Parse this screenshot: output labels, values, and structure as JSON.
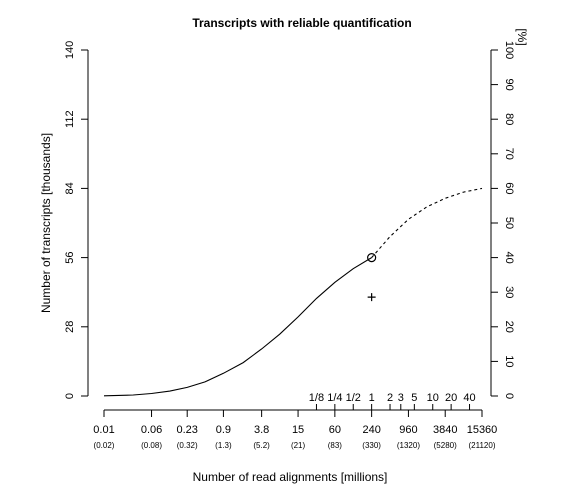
{
  "chart_data": {
    "type": "line",
    "title": "Transcripts with reliable quantification",
    "xlabel": "Number of read alignments [millions]",
    "ylabel": "Number of transcripts [thousands]",
    "y2label": "[%]",
    "scale": "log",
    "x_ticks": [
      {
        "label": "0.01",
        "sub": "(0.02)",
        "x": 0.01
      },
      {
        "label": "0.06",
        "sub": "(0.08)",
        "x": 0.06
      },
      {
        "label": "0.23",
        "sub": "(0.32)",
        "x": 0.23
      },
      {
        "label": "0.9",
        "sub": "(1.3)",
        "x": 0.9
      },
      {
        "label": "3.8",
        "sub": "(5.2)",
        "x": 3.8
      },
      {
        "label": "15",
        "sub": "(21)",
        "x": 15
      },
      {
        "label": "60",
        "sub": "(83)",
        "x": 60
      },
      {
        "label": "240",
        "sub": "(330)",
        "x": 240
      },
      {
        "label": "960",
        "sub": "(1320)",
        "x": 960
      },
      {
        "label": "3840",
        "sub": "(5280)",
        "x": 3840
      },
      {
        "label": "15360",
        "sub": "(21120)",
        "x": 15360
      }
    ],
    "fraction_ticks": [
      {
        "label": "1/8",
        "x": 30
      },
      {
        "label": "1/4",
        "x": 60
      },
      {
        "label": "1/2",
        "x": 120
      },
      {
        "label": "1",
        "x": 240
      },
      {
        "label": "2",
        "x": 480
      },
      {
        "label": "3",
        "x": 720
      },
      {
        "label": "5",
        "x": 1200
      },
      {
        "label": "10",
        "x": 2400
      },
      {
        "label": "20",
        "x": 4800
      },
      {
        "label": "40",
        "x": 9600
      }
    ],
    "y_ticks": [
      0,
      28,
      56,
      84,
      112,
      140
    ],
    "y2_ticks": [
      0,
      10,
      20,
      30,
      40,
      50,
      60,
      70,
      80,
      90,
      100
    ],
    "ylim": [
      0,
      140
    ],
    "y2lim": [
      0,
      100
    ],
    "series": [
      {
        "style": "solid",
        "x": [
          0.01,
          0.03,
          0.06,
          0.12,
          0.23,
          0.45,
          0.9,
          1.9,
          3.8,
          7.5,
          15,
          30,
          60,
          120,
          240
        ],
        "y": [
          0.1,
          0.4,
          1.0,
          2.0,
          3.5,
          5.7,
          9.2,
          13.5,
          19.0,
          25.0,
          32.0,
          39.5,
          46.0,
          51.5,
          56.0
        ]
      },
      {
        "style": "dashed",
        "x": [
          240,
          480,
          960,
          1920,
          3840,
          7680,
          15360
        ],
        "y": [
          56.0,
          64.5,
          71.5,
          76.5,
          80.0,
          82.5,
          84.0
        ]
      }
    ],
    "markers": [
      {
        "shape": "circle",
        "x": 240,
        "y": 56
      },
      {
        "shape": "plus",
        "x": 240,
        "y": 40
      }
    ]
  }
}
